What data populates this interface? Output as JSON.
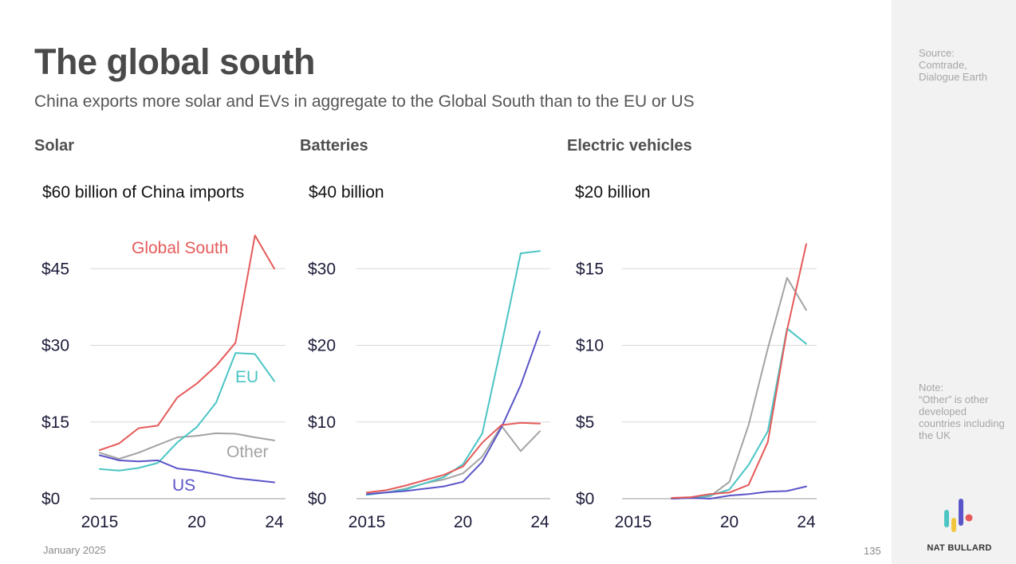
{
  "title": "The global south",
  "subtitle": "China exports more solar and EVs in aggregate to the Global South than to the EU or US",
  "footer": {
    "date": "January 2025",
    "page": "135"
  },
  "sidebar": {
    "source": "Source:\nComtrade,\nDialogue Earth",
    "note": "Note:\n“Other” is other developed countries including the UK",
    "brand": "NAT BULLARD"
  },
  "colors": {
    "global_south": "#e65a5a",
    "eu": "#4bc4c4",
    "other": "#a3a3a3",
    "us": "#5a55c8",
    "logo_teal": "#4bc4c4",
    "logo_yellow": "#f3c53f",
    "logo_purple": "#5a55c8",
    "logo_red": "#e65a5a"
  },
  "chart_data": [
    {
      "type": "line",
      "title": "Solar",
      "ylabel": "$60 billion of China imports",
      "ylim": [
        0,
        60
      ],
      "yticks": [
        0,
        15,
        30,
        45
      ],
      "ytick_labels": [
        "$0",
        "$15",
        "$30",
        "$45"
      ],
      "xlim": [
        2015,
        2024
      ],
      "xticks": [
        2015,
        2020,
        2024
      ],
      "xtick_labels": [
        "2015",
        "20",
        "24"
      ],
      "series": [
        {
          "name": "Global South",
          "color_key": "global_south",
          "label": "Global South",
          "x": [
            2015,
            2016,
            2017,
            2018,
            2019,
            2020,
            2021,
            2022,
            2023,
            2024
          ],
          "values": [
            9.5,
            10.8,
            13.8,
            14.3,
            19.8,
            22.5,
            26,
            30.5,
            51.5,
            45
          ]
        },
        {
          "name": "EU",
          "color_key": "eu",
          "label": "EU",
          "x": [
            2015,
            2016,
            2017,
            2018,
            2019,
            2020,
            2021,
            2022,
            2023,
            2024
          ],
          "values": [
            5.8,
            5.5,
            6,
            7,
            11,
            14,
            18.8,
            28.5,
            28.3,
            23
          ]
        },
        {
          "name": "Other",
          "color_key": "other",
          "label": "Other",
          "x": [
            2015,
            2016,
            2017,
            2018,
            2019,
            2020,
            2021,
            2022,
            2023,
            2024
          ],
          "values": [
            9,
            7.8,
            9,
            10.5,
            12,
            12.3,
            12.8,
            12.7,
            12,
            11.4
          ]
        },
        {
          "name": "US",
          "color_key": "us",
          "label": "US",
          "x": [
            2015,
            2016,
            2017,
            2018,
            2019,
            2020,
            2021,
            2022,
            2023,
            2024
          ],
          "values": [
            8.5,
            7.5,
            7.3,
            7.5,
            5.9,
            5.5,
            4.8,
            4,
            3.6,
            3.2
          ]
        }
      ]
    },
    {
      "type": "line",
      "title": "Batteries",
      "ylabel": "$40 billion",
      "ylim": [
        0,
        40
      ],
      "yticks": [
        0,
        10,
        20,
        30
      ],
      "ytick_labels": [
        "$0",
        "$10",
        "$20",
        "$30"
      ],
      "xlim": [
        2015,
        2024
      ],
      "xticks": [
        2015,
        2020,
        2024
      ],
      "xtick_labels": [
        "2015",
        "20",
        "24"
      ],
      "series": [
        {
          "name": "Global South",
          "color_key": "global_south",
          "x": [
            2015,
            2016,
            2017,
            2018,
            2019,
            2020,
            2021,
            2022,
            2023,
            2024
          ],
          "values": [
            0.8,
            1.1,
            1.7,
            2.4,
            3.1,
            4.2,
            7.3,
            9.6,
            9.9,
            9.8
          ]
        },
        {
          "name": "EU",
          "color_key": "eu",
          "x": [
            2015,
            2016,
            2017,
            2018,
            2019,
            2020,
            2021,
            2022,
            2023,
            2024
          ],
          "values": [
            0.5,
            0.8,
            1.2,
            2,
            2.8,
            4.5,
            8.5,
            20,
            32,
            32.3
          ]
        },
        {
          "name": "Other",
          "color_key": "other",
          "x": [
            2015,
            2016,
            2017,
            2018,
            2019,
            2020,
            2021,
            2022,
            2023,
            2024
          ],
          "values": [
            0.6,
            0.8,
            1.3,
            2,
            2.5,
            3.3,
            5.5,
            9.5,
            6.2,
            8.8
          ]
        },
        {
          "name": "US",
          "color_key": "us",
          "x": [
            2015,
            2016,
            2017,
            2018,
            2019,
            2020,
            2021,
            2022,
            2023,
            2024
          ],
          "values": [
            0.6,
            0.8,
            1,
            1.3,
            1.6,
            2.2,
            4.8,
            9.3,
            14.8,
            21.8
          ]
        }
      ]
    },
    {
      "type": "line",
      "title": "Electric vehicles",
      "ylabel": "$20 billion",
      "ylim": [
        0,
        20
      ],
      "yticks": [
        0,
        5,
        10,
        15
      ],
      "ytick_labels": [
        "$0",
        "$5",
        "$10",
        "$15"
      ],
      "xlim": [
        2015,
        2024
      ],
      "xticks": [
        2015,
        2020,
        2024
      ],
      "xtick_labels": [
        "2015",
        "20",
        "24"
      ],
      "series": [
        {
          "name": "Global South",
          "color_key": "global_south",
          "x": [
            2017,
            2018,
            2019,
            2020,
            2021,
            2022,
            2023,
            2024
          ],
          "values": [
            0.05,
            0.1,
            0.3,
            0.4,
            0.9,
            3.7,
            11,
            16.6
          ]
        },
        {
          "name": "EU",
          "color_key": "eu",
          "x": [
            2017,
            2018,
            2019,
            2020,
            2021,
            2022,
            2023,
            2024
          ],
          "values": [
            0,
            0.05,
            0.2,
            0.6,
            2.2,
            4.4,
            11.1,
            10.1
          ]
        },
        {
          "name": "Other",
          "color_key": "other",
          "x": [
            2017,
            2018,
            2019,
            2020,
            2021,
            2022,
            2023,
            2024
          ],
          "values": [
            0,
            0.05,
            0.15,
            1.1,
            4.8,
            9.8,
            14.4,
            12.3
          ]
        },
        {
          "name": "US",
          "color_key": "us",
          "x": [
            2017,
            2018,
            2019,
            2020,
            2021,
            2022,
            2023,
            2024
          ],
          "values": [
            0,
            0.05,
            0,
            0.2,
            0.3,
            0.45,
            0.5,
            0.8
          ]
        }
      ]
    }
  ]
}
